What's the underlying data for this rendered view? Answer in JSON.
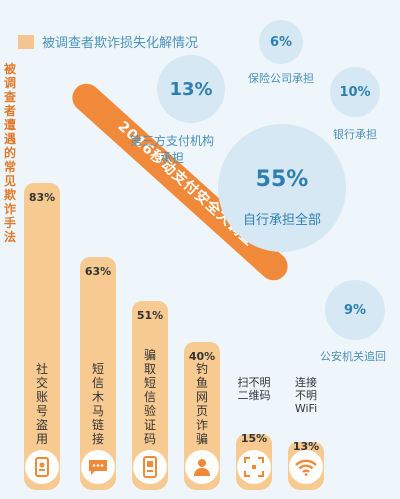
{
  "header": {
    "title": "被调查者欺诈损失化解情况"
  },
  "left_title": "被调查者遭遇的常见欺诈手法",
  "banner": "2016移动支付安全大调查",
  "bubbles": [
    {
      "pct": "6%",
      "label": "保险公司承担"
    },
    {
      "pct": "13%",
      "label": "第三方支付机构承担"
    },
    {
      "pct": "10%",
      "label": "银行承担"
    },
    {
      "pct": "55%",
      "label": "自行承担全部"
    },
    {
      "pct": "9%",
      "label": "公安机关追回"
    }
  ],
  "chart_data": [
    {
      "type": "bar",
      "title": "被调查者遭遇的常见欺诈手法",
      "categories": [
        "社交账号盗用",
        "短信木马链接",
        "骗取短信验证码",
        "钓鱼网页诈骗",
        "扫不明二维码",
        "连接不明WiFi"
      ],
      "values": [
        83,
        63,
        51,
        40,
        15,
        13
      ],
      "value_labels": [
        "83%",
        "63%",
        "51%",
        "40%",
        "15%",
        "13%"
      ],
      "label_lines": [
        [
          "社交账号盗用"
        ],
        [
          "短信木马链接"
        ],
        [
          "骗取短信验证码"
        ],
        [
          "钓鱼网页诈骗"
        ],
        [
          "扫不明",
          "二维码"
        ],
        [
          "连接",
          "不明",
          "WiFi"
        ]
      ],
      "icons": [
        "phone-user-icon",
        "sms-icon",
        "phone-icon",
        "person-icon",
        "qr-scan-icon",
        "wifi-icon"
      ],
      "unit": "%",
      "ylim": [
        0,
        100
      ]
    },
    {
      "type": "bubble",
      "title": "被调查者欺诈损失化解情况",
      "categories": [
        "保险公司承担",
        "第三方支付机构承担",
        "银行承担",
        "自行承担全部",
        "公安机关追回"
      ],
      "values": [
        6,
        13,
        10,
        55,
        9
      ],
      "unit": "%"
    }
  ],
  "colors": {
    "bar": "#f7ca91",
    "banner": "#f08a3a",
    "bubble": "#d6e8f3",
    "accent": "#2e7fb0",
    "title": "#e07a2b"
  }
}
